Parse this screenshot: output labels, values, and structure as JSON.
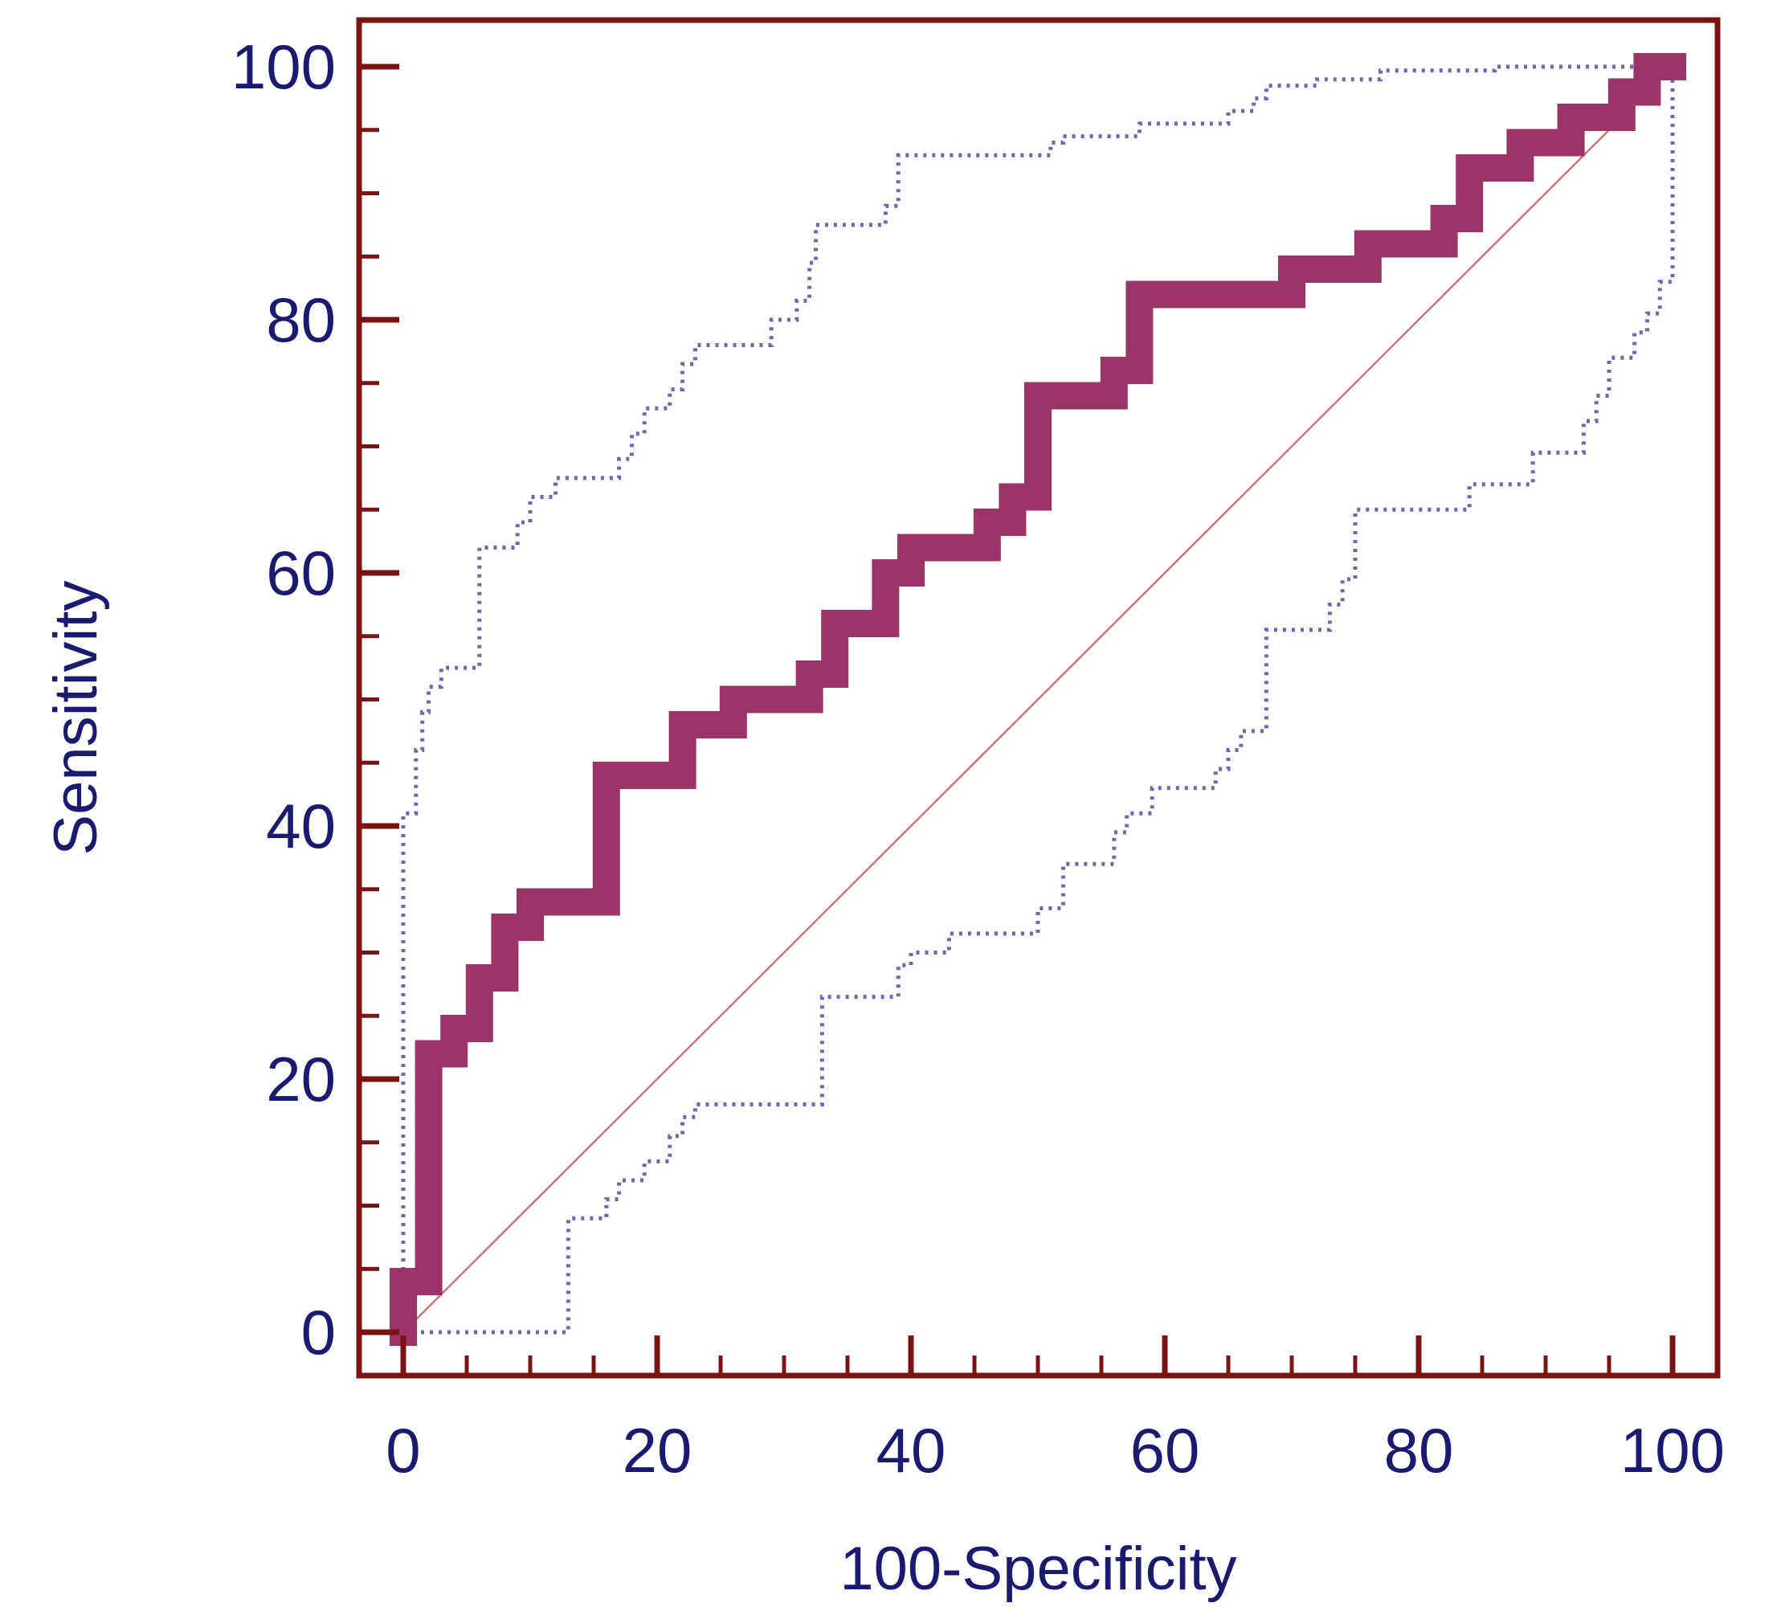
{
  "colors": {
    "frame": "#7a1414",
    "text": "#1a1a6e",
    "roc_curve": "#9b3467",
    "confidence_bounds": "#6a6aa8",
    "reference_line": "#c87878",
    "background": "#ffffff"
  },
  "chart_data": {
    "type": "line",
    "xlabel": "100-Specificity",
    "ylabel": "Sensitivity",
    "xlim": [
      0,
      100
    ],
    "ylim": [
      0,
      100
    ],
    "x_ticks": [
      0,
      20,
      40,
      60,
      80,
      100
    ],
    "y_ticks": [
      0,
      20,
      40,
      60,
      80,
      100
    ],
    "minor_tick_step": 5,
    "grid": false,
    "legend": "none",
    "series": [
      {
        "role": "roc-curve",
        "style": "thick-step",
        "points": [
          [
            0,
            0
          ],
          [
            0,
            4
          ],
          [
            2,
            4
          ],
          [
            2,
            22
          ],
          [
            4,
            22
          ],
          [
            4,
            24
          ],
          [
            6,
            24
          ],
          [
            6,
            28
          ],
          [
            8,
            28
          ],
          [
            8,
            32
          ],
          [
            10,
            32
          ],
          [
            10,
            34
          ],
          [
            16,
            34
          ],
          [
            16,
            44
          ],
          [
            22,
            44
          ],
          [
            22,
            48
          ],
          [
            26,
            48
          ],
          [
            26,
            50
          ],
          [
            32,
            50
          ],
          [
            32,
            52
          ],
          [
            34,
            52
          ],
          [
            34,
            56
          ],
          [
            38,
            56
          ],
          [
            38,
            60
          ],
          [
            40,
            60
          ],
          [
            40,
            62
          ],
          [
            46,
            62
          ],
          [
            46,
            64
          ],
          [
            48,
            64
          ],
          [
            48,
            66
          ],
          [
            50,
            66
          ],
          [
            50,
            74
          ],
          [
            56,
            74
          ],
          [
            56,
            76
          ],
          [
            58,
            76
          ],
          [
            58,
            82
          ],
          [
            70,
            82
          ],
          [
            70,
            84
          ],
          [
            76,
            84
          ],
          [
            76,
            86
          ],
          [
            82,
            86
          ],
          [
            82,
            88
          ],
          [
            84,
            88
          ],
          [
            84,
            92
          ],
          [
            88,
            92
          ],
          [
            88,
            94
          ],
          [
            92,
            94
          ],
          [
            92,
            96
          ],
          [
            96,
            96
          ],
          [
            96,
            98
          ],
          [
            98,
            98
          ],
          [
            98,
            100
          ],
          [
            100,
            100
          ]
        ]
      },
      {
        "role": "upper-confidence-bound",
        "style": "dotted-step",
        "points": [
          [
            0,
            0
          ],
          [
            0,
            41
          ],
          [
            1,
            41
          ],
          [
            1,
            46
          ],
          [
            1.5,
            46
          ],
          [
            1.5,
            49
          ],
          [
            2,
            49
          ],
          [
            2,
            51
          ],
          [
            3,
            51
          ],
          [
            3,
            52.5
          ],
          [
            6,
            52.5
          ],
          [
            6,
            62
          ],
          [
            9,
            62
          ],
          [
            9,
            64
          ],
          [
            10,
            64
          ],
          [
            10,
            66
          ],
          [
            12,
            66
          ],
          [
            12,
            67.5
          ],
          [
            17,
            67.5
          ],
          [
            17,
            69
          ],
          [
            18,
            69
          ],
          [
            18,
            71
          ],
          [
            19,
            71
          ],
          [
            19,
            73
          ],
          [
            21,
            73
          ],
          [
            21,
            74.5
          ],
          [
            22,
            74.5
          ],
          [
            22,
            76.5
          ],
          [
            23,
            76.5
          ],
          [
            23,
            78
          ],
          [
            29,
            78
          ],
          [
            29,
            80
          ],
          [
            31,
            80
          ],
          [
            31,
            81.5
          ],
          [
            32,
            81.5
          ],
          [
            32,
            84.5
          ],
          [
            32.5,
            84.5
          ],
          [
            32.5,
            87.5
          ],
          [
            38,
            87.5
          ],
          [
            38,
            89
          ],
          [
            39,
            89
          ],
          [
            39,
            93
          ],
          [
            51,
            93
          ],
          [
            51,
            94
          ],
          [
            52,
            94
          ],
          [
            52,
            94.5
          ],
          [
            58,
            94.5
          ],
          [
            58,
            95.5
          ],
          [
            65,
            95.5
          ],
          [
            65,
            96.5
          ],
          [
            67,
            96.5
          ],
          [
            67,
            97.5
          ],
          [
            68,
            97.5
          ],
          [
            68,
            98.5
          ],
          [
            72,
            98.5
          ],
          [
            72,
            99
          ],
          [
            77,
            99
          ],
          [
            77,
            99.7
          ],
          [
            86,
            99.7
          ],
          [
            86,
            100
          ],
          [
            100,
            100
          ]
        ]
      },
      {
        "role": "lower-confidence-bound",
        "style": "dotted-step",
        "points": [
          [
            0,
            0
          ],
          [
            13,
            0
          ],
          [
            13,
            9
          ],
          [
            16,
            9
          ],
          [
            16,
            10.5
          ],
          [
            17,
            10.5
          ],
          [
            17,
            12
          ],
          [
            19,
            12
          ],
          [
            19,
            13.5
          ],
          [
            21,
            13.5
          ],
          [
            21,
            15.5
          ],
          [
            22,
            15.5
          ],
          [
            22,
            17
          ],
          [
            23,
            17
          ],
          [
            23,
            18
          ],
          [
            33,
            18
          ],
          [
            33,
            26.5
          ],
          [
            39,
            26.5
          ],
          [
            39,
            29
          ],
          [
            40,
            29
          ],
          [
            40,
            30
          ],
          [
            43,
            30
          ],
          [
            43,
            31.5
          ],
          [
            50,
            31.5
          ],
          [
            50,
            33.5
          ],
          [
            52,
            33.5
          ],
          [
            52,
            37
          ],
          [
            56,
            37
          ],
          [
            56,
            39.5
          ],
          [
            57,
            39.5
          ],
          [
            57,
            41
          ],
          [
            59,
            41
          ],
          [
            59,
            43
          ],
          [
            64,
            43
          ],
          [
            64,
            44.5
          ],
          [
            65,
            44.5
          ],
          [
            65,
            46
          ],
          [
            66,
            46
          ],
          [
            66,
            47.5
          ],
          [
            68,
            47.5
          ],
          [
            68,
            55.5
          ],
          [
            73,
            55.5
          ],
          [
            73,
            57.5
          ],
          [
            74,
            57.5
          ],
          [
            74,
            59.5
          ],
          [
            75,
            59.5
          ],
          [
            75,
            65
          ],
          [
            84,
            65
          ],
          [
            84,
            67
          ],
          [
            89,
            67
          ],
          [
            89,
            69.5
          ],
          [
            93,
            69.5
          ],
          [
            93,
            72
          ],
          [
            94,
            72
          ],
          [
            94,
            74
          ],
          [
            95,
            74
          ],
          [
            95,
            77
          ],
          [
            97,
            77
          ],
          [
            97,
            79
          ],
          [
            98,
            79
          ],
          [
            98,
            80.5
          ],
          [
            99,
            80.5
          ],
          [
            99,
            83
          ],
          [
            100,
            83
          ],
          [
            100,
            100
          ]
        ]
      },
      {
        "role": "reference-diagonal",
        "style": "thin-line",
        "points": [
          [
            0,
            0
          ],
          [
            100,
            100
          ]
        ]
      }
    ]
  }
}
